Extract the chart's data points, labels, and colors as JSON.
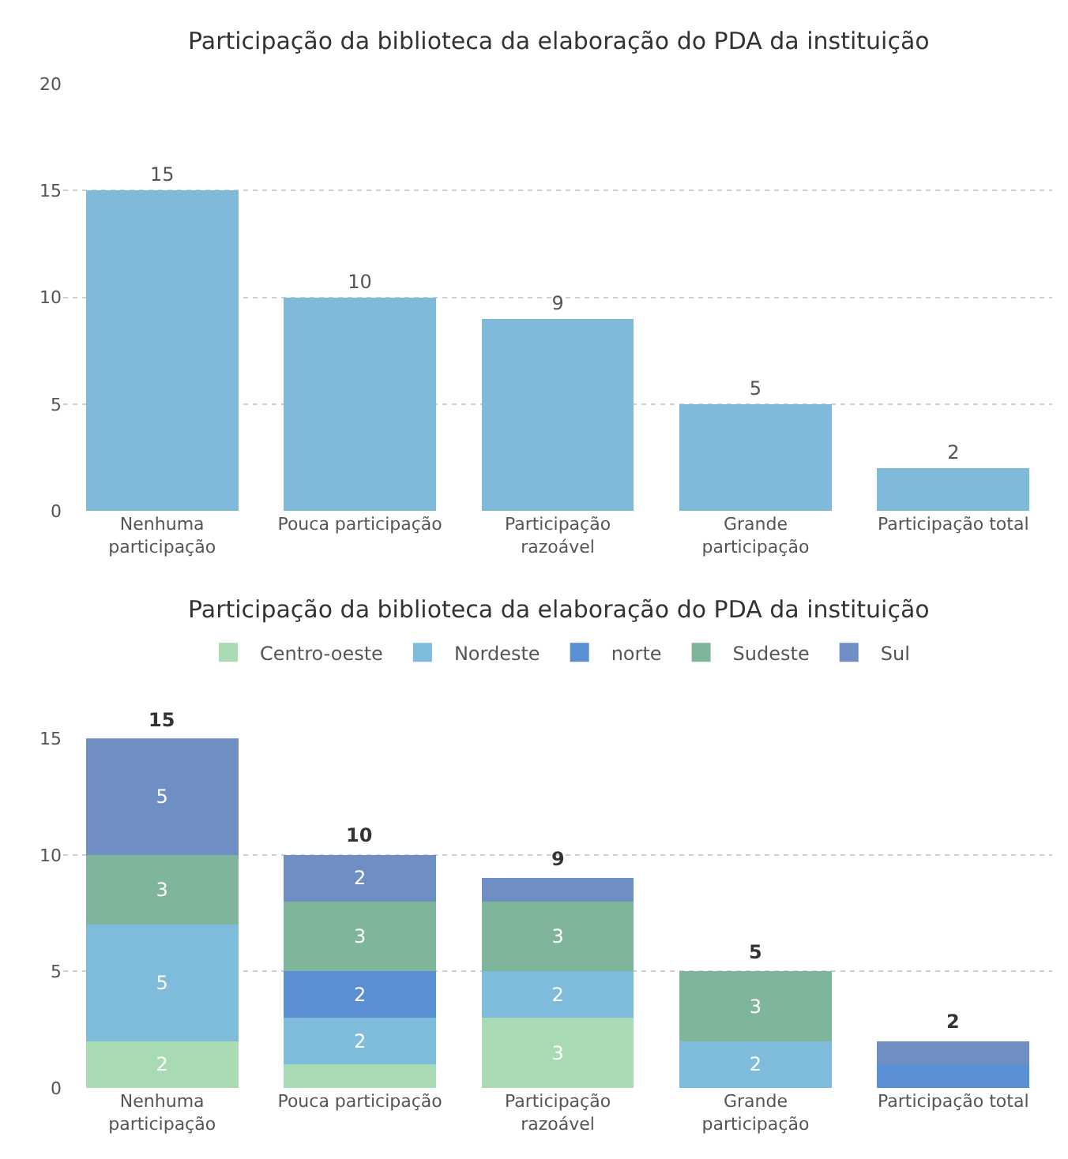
{
  "chart_data": [
    {
      "type": "bar",
      "title": "Participação da biblioteca da elaboração do PDA da instituição",
      "categories": [
        "Nenhuma participação",
        "Pouca participação",
        "Participação razoável",
        "Grande participação",
        "Participação total"
      ],
      "values": [
        15,
        10,
        9,
        5,
        2
      ],
      "color": "#7fbadb",
      "ylim": [
        0,
        20
      ],
      "yticks": [
        0,
        5,
        10,
        15,
        20
      ],
      "grid": "y",
      "data_labels": true
    },
    {
      "type": "bar",
      "title": "Participação da biblioteca da elaboração do PDA da instituição",
      "categories": [
        "Nenhuma participação",
        "Pouca participação",
        "Participação razoável",
        "Grande participação",
        "Participação total"
      ],
      "stacked": true,
      "legend": "top",
      "ylim": [
        0,
        15
      ],
      "yticks": [
        0,
        5,
        10,
        15
      ],
      "grid": "y",
      "series": [
        {
          "name": "Centro-oeste",
          "color": "#a8dbb4",
          "values": [
            2,
            1,
            3,
            0,
            0
          ],
          "value_labels": [
            "2",
            null,
            "3",
            null,
            null
          ]
        },
        {
          "name": "Nordeste",
          "color": "#7fbcdc",
          "values": [
            5,
            2,
            2,
            2,
            0
          ],
          "value_labels": [
            "5",
            "2",
            "2",
            "2",
            null
          ]
        },
        {
          "name": "norte",
          "color": "#5b8fd4",
          "values": [
            0,
            2,
            0,
            0,
            1
          ],
          "value_labels": [
            null,
            "2",
            null,
            null,
            null
          ]
        },
        {
          "name": "Sudeste",
          "color": "#7fb59a",
          "values": [
            3,
            3,
            3,
            3,
            0
          ],
          "value_labels": [
            "3",
            "3",
            "3",
            "3",
            null
          ]
        },
        {
          "name": "Sul",
          "color": "#6f8fc4",
          "values": [
            5,
            2,
            1,
            0,
            1
          ],
          "value_labels": [
            "5",
            "2",
            null,
            null,
            null
          ]
        }
      ],
      "totals": [
        "15",
        "10",
        "9",
        "5",
        "2"
      ]
    }
  ]
}
